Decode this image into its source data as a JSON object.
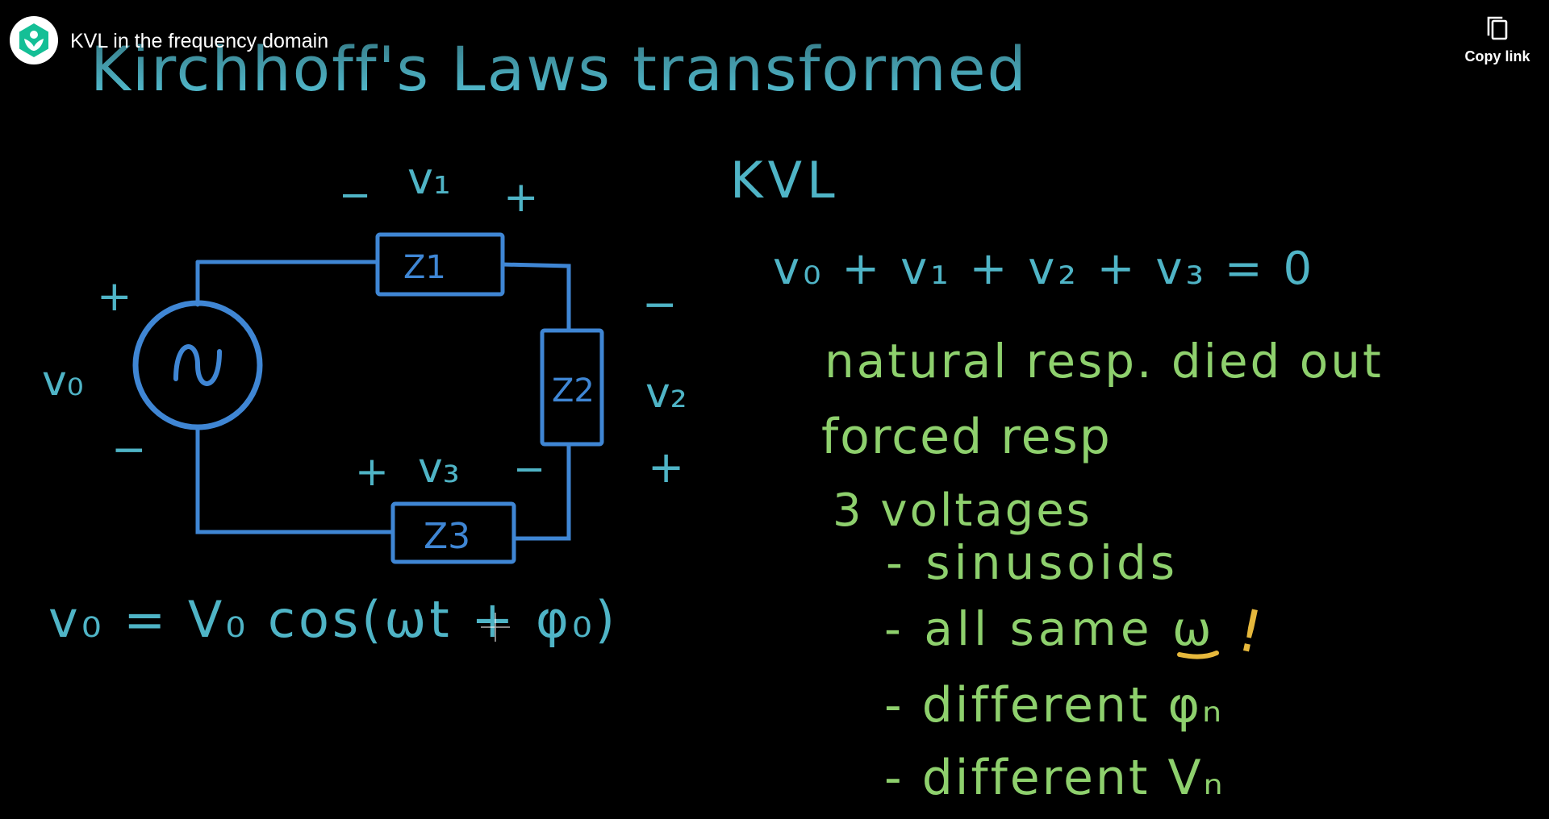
{
  "player": {
    "title": "KVL in the frequency domain",
    "copy_link_label": "Copy link",
    "logo_icon": "khan-academy-logo-icon",
    "copy_icon": "copy-icon"
  },
  "board": {
    "heading": "Kirchhoff's Laws transformed",
    "kvl_label": "KVL",
    "kvl_equation": "v₀ + v₁ + v₂ + v₃ = 0",
    "source_equation": "v₀ = V₀ cos(ωt + φ₀)",
    "components": {
      "z1": "Z1",
      "z2": "Z2",
      "z3": "Z3",
      "v0": "v₀",
      "v1": "v₁",
      "v2": "v₂",
      "v3": "v₃",
      "plus": "+",
      "minus": "−"
    },
    "notes": [
      "natural resp. died out",
      "forced resp",
      "3 voltages",
      "- sinusoids",
      "- all same ω",
      "- different φₙ",
      "- different Vₙ"
    ],
    "exclamation": "!"
  },
  "colors": {
    "cyan_ink": "#4fb4c6",
    "blue_ink": "#3f86d4",
    "green_ink": "#8ed06d",
    "yellow_ink": "#e6b83c",
    "background": "#000000"
  }
}
